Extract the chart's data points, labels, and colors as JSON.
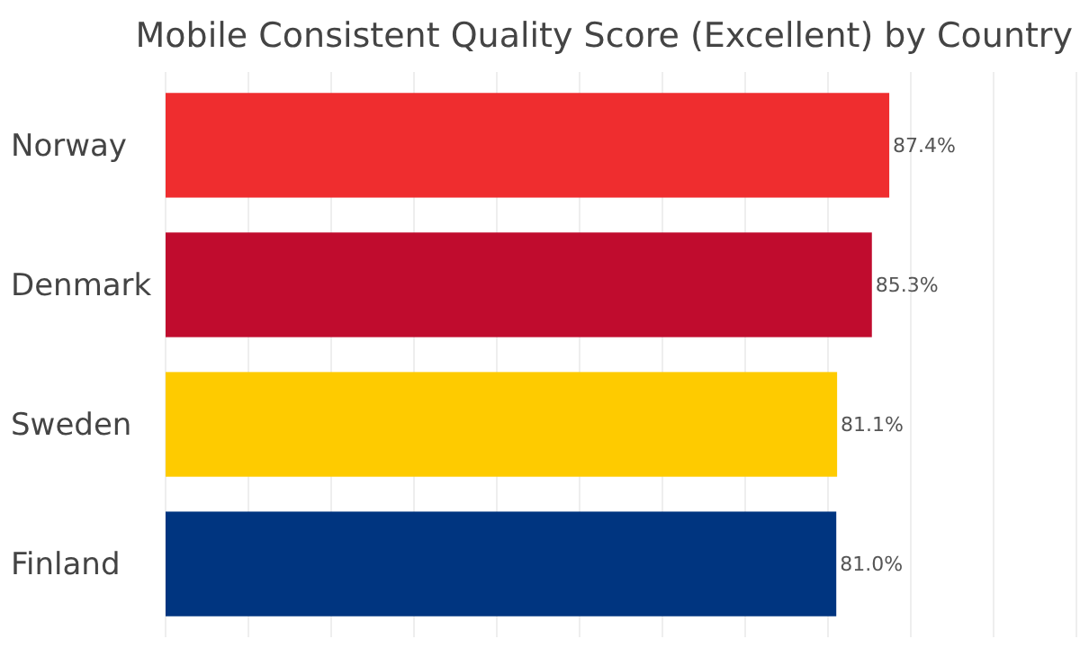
{
  "chart_data": {
    "type": "bar",
    "orientation": "horizontal",
    "title": "Mobile Consistent Quality Score (Excellent) by Country",
    "categories": [
      "Norway",
      "Denmark",
      "Sweden",
      "Finland"
    ],
    "values": [
      87.4,
      85.3,
      81.1,
      81.0
    ],
    "colors": [
      "#ef2d2f",
      "#c00c2e",
      "#fecb00",
      "#003580"
    ],
    "value_labels": [
      "87.4%",
      "85.3%",
      "81.1%",
      "81.0%"
    ],
    "xlim": [
      0,
      110
    ],
    "xticks": [
      {
        "value": 0,
        "label": null
      },
      {
        "value": 10,
        "label": null
      },
      {
        "value": 20,
        "label": null
      },
      {
        "value": 30,
        "label": null
      },
      {
        "value": 40,
        "label": null
      },
      {
        "value": 50,
        "label": null
      },
      {
        "value": 60,
        "label": null
      },
      {
        "value": 70,
        "label": null
      },
      {
        "value": 80,
        "label": null
      },
      {
        "value": 90,
        "label": null
      },
      {
        "value": 100,
        "label": null
      },
      {
        "value": 110,
        "label": null
      }
    ],
    "tick_labels": "y",
    "grid": "x"
  }
}
